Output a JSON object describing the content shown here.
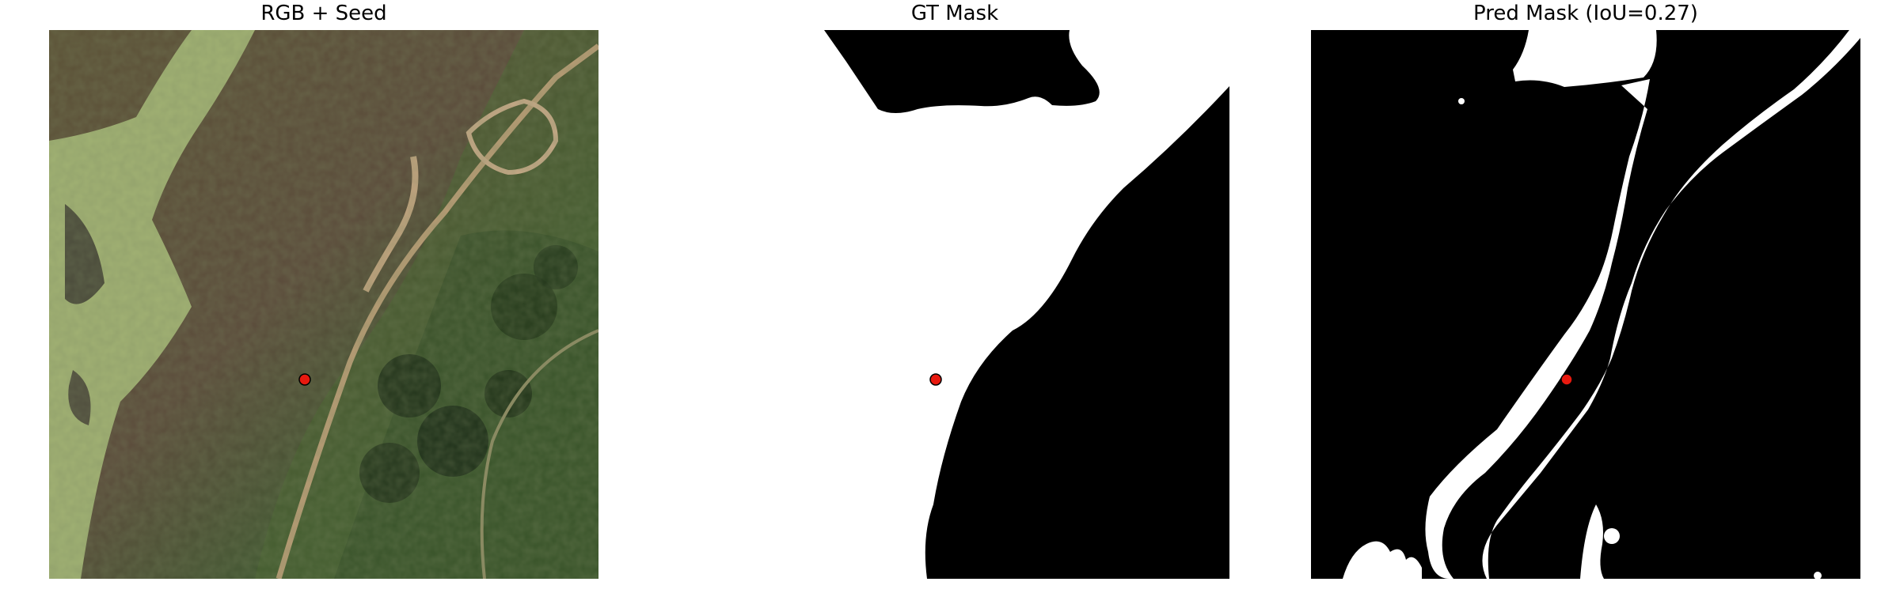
{
  "figure": {
    "panels": [
      {
        "title": "RGB + Seed"
      },
      {
        "title": "GT Mask"
      },
      {
        "title": "Pred Mask (IoU=0.27)"
      }
    ],
    "seed_color": "#e8190f",
    "mask_fg": "#ffffff",
    "mask_bg": "#000000"
  }
}
